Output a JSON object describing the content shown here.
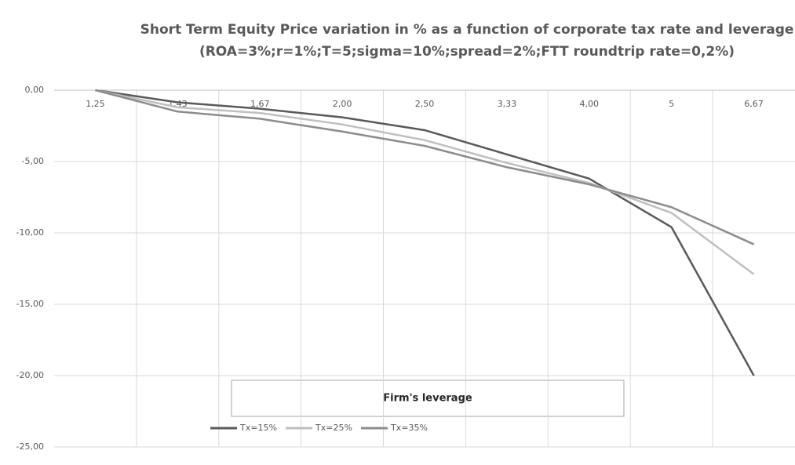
{
  "chart_data": {
    "type": "line",
    "title": "Short Term Equity Price variation in % as a function of corporate tax rate and leverage",
    "subtitle": "(ROA=3%;r=1%;T=5;sigma=10%;spread=2%;FTT roundtrip rate=0,2%)",
    "x_label": "Firm's leverage",
    "categories": [
      "1,25",
      "1,43",
      "1,67",
      "2,00",
      "2,50",
      "3,33",
      "4,00",
      "5",
      "6,67"
    ],
    "series": [
      {
        "name": "Tx=15%",
        "color": "#595959",
        "values": [
          0,
          -0.85,
          -1.3,
          -1.9,
          -2.8,
          -4.5,
          -6.2,
          -9.6,
          -20.0
        ]
      },
      {
        "name": "Tx=25%",
        "color": "#bfbfbf",
        "values": [
          0,
          -1.2,
          -1.6,
          -2.4,
          -3.5,
          -5.1,
          -6.5,
          -8.6,
          -12.9
        ]
      },
      {
        "name": "Tx=35%",
        "color": "#8c8c8c",
        "values": [
          0,
          -1.5,
          -2.0,
          -2.9,
          -3.9,
          -5.4,
          -6.6,
          -8.2,
          -10.8
        ]
      }
    ],
    "ylim": [
      -25,
      0
    ],
    "yticks": [
      {
        "value": 0,
        "label": "0,00"
      },
      {
        "value": -5,
        "label": "-5,00"
      },
      {
        "value": -10,
        "label": "-10,00"
      },
      {
        "value": -15,
        "label": "-15,00"
      },
      {
        "value": -20,
        "label": "-20,00"
      },
      {
        "value": -25,
        "label": "-25,00"
      }
    ],
    "grid": true
  }
}
